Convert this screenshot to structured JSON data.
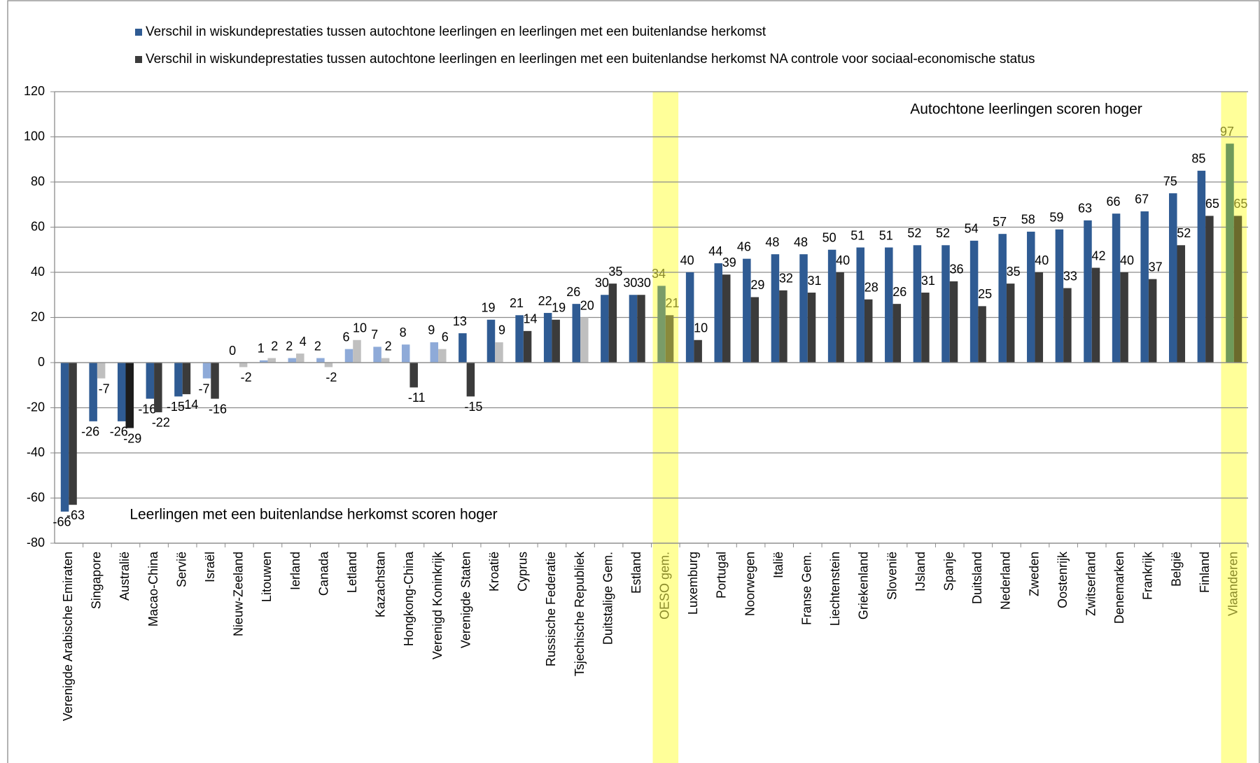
{
  "chart_data": {
    "type": "bar",
    "annotations": [
      "Autochtone leerlingen scoren hoger",
      "Leerlingen met een buitenlandse herkomst scoren  hoger"
    ],
    "categories": [
      "Verenigde Arabische Emiraten",
      "Singapore",
      "Australië",
      "Macao-China",
      "Servië",
      "Israël",
      "Nieuw-Zeeland",
      "Litouwen",
      "Ierland",
      "Canada",
      "Letland",
      "Kazachstan",
      "Hongkong-China",
      "Verenigd Koninkrijk",
      "Verenigde Staten",
      "Kroatië",
      "Cyprus",
      "Russische Federatie",
      "Tsjechische Republiek",
      "Duitstalige Gem.",
      "Estland",
      "OESO gem.",
      "Luxemburg",
      "Portugal",
      "Noorwegen",
      "Italië",
      "Franse Gem.",
      "Liechtenstein",
      "Griekenland",
      "Slovenië",
      "IJsland",
      "Spanje",
      "Duitsland",
      "Nederland",
      "Zweden",
      "Oostenrijk",
      "Zwitserland",
      "Denemarken",
      "Frankrijk",
      "België",
      "Finland",
      "Vlaanderen"
    ],
    "series": [
      {
        "name": "Verschil in wiskundeprestaties tussen autochtone leerlingen en leerlingen met een buitenlandse herkomst",
        "color": "#2f5b93",
        "values": [
          -66,
          -26,
          -26,
          -16,
          -15,
          -7,
          0,
          1,
          2,
          2,
          6,
          7,
          8,
          9,
          13,
          19,
          21,
          22,
          26,
          30,
          30,
          34,
          40,
          44,
          46,
          48,
          48,
          50,
          51,
          51,
          52,
          52,
          54,
          57,
          58,
          59,
          63,
          66,
          67,
          75,
          85,
          97
        ],
        "colors": [
          "#2f5b93",
          "#2f5b93",
          "#2f5b93",
          "#2f5b93",
          "#2f5b93",
          "#8eaad8",
          "#8eaad8",
          "#8eaad8",
          "#8eaad8",
          "#8eaad8",
          "#8eaad8",
          "#8eaad8",
          "#8eaad8",
          "#8eaad8",
          "#2f5b93",
          "#2f5b93",
          "#2f5b93",
          "#2f5b93",
          "#2f5b93",
          "#2f5b93",
          "#2f5b93",
          "#7a9c68",
          "#2f5b93",
          "#2f5b93",
          "#2f5b93",
          "#2f5b93",
          "#2f5b93",
          "#2f5b93",
          "#2f5b93",
          "#2f5b93",
          "#2f5b93",
          "#2f5b93",
          "#2f5b93",
          "#2f5b93",
          "#2f5b93",
          "#2f5b93",
          "#2f5b93",
          "#2f5b93",
          "#2f5b93",
          "#2f5b93",
          "#2f5b93",
          "#6f9a5a"
        ]
      },
      {
        "name": "Verschil in wiskundeprestaties tussen autochtone leerlingen en leerlingen met een buitenlandse herkomst NA controle voor sociaal-economische status",
        "color": "#3b3b3b",
        "values": [
          -63,
          -7,
          -29,
          -22,
          -14,
          -16,
          -2,
          2,
          4,
          -2,
          10,
          2,
          -11,
          6,
          -15,
          9,
          14,
          19,
          20,
          35,
          30,
          21,
          10,
          39,
          29,
          32,
          31,
          40,
          28,
          26,
          31,
          36,
          25,
          35,
          40,
          33,
          42,
          40,
          37,
          52,
          65,
          65
        ],
        "colors": [
          "#3b3b3b",
          "#bfbfbf",
          "#1c1c1c",
          "#3b3b3b",
          "#3b3b3b",
          "#3b3b3b",
          "#bfbfbf",
          "#bfbfbf",
          "#bfbfbf",
          "#bfbfbf",
          "#bfbfbf",
          "#bfbfbf",
          "#3b3b3b",
          "#bfbfbf",
          "#3b3b3b",
          "#bfbfbf",
          "#3b3b3b",
          "#3b3b3b",
          "#bfbfbf",
          "#3b3b3b",
          "#3b3b3b",
          "#8a8a3c",
          "#3b3b3b",
          "#3b3b3b",
          "#3b3b3b",
          "#3b3b3b",
          "#3b3b3b",
          "#3b3b3b",
          "#3b3b3b",
          "#3b3b3b",
          "#3b3b3b",
          "#3b3b3b",
          "#3b3b3b",
          "#3b3b3b",
          "#3b3b3b",
          "#3b3b3b",
          "#3b3b3b",
          "#3b3b3b",
          "#3b3b3b",
          "#3b3b3b",
          "#3b3b3b",
          "#6b6a2c"
        ]
      }
    ],
    "highlight": [
      21,
      41
    ],
    "highlight_color": "#ffff99",
    "highlight_text_color": "#8a8a2a",
    "ylim": [
      -80,
      120
    ],
    "yticks": [
      -80,
      -60,
      -40,
      -20,
      0,
      20,
      40,
      60,
      80,
      100,
      120
    ],
    "grid": true,
    "legend": "top"
  }
}
